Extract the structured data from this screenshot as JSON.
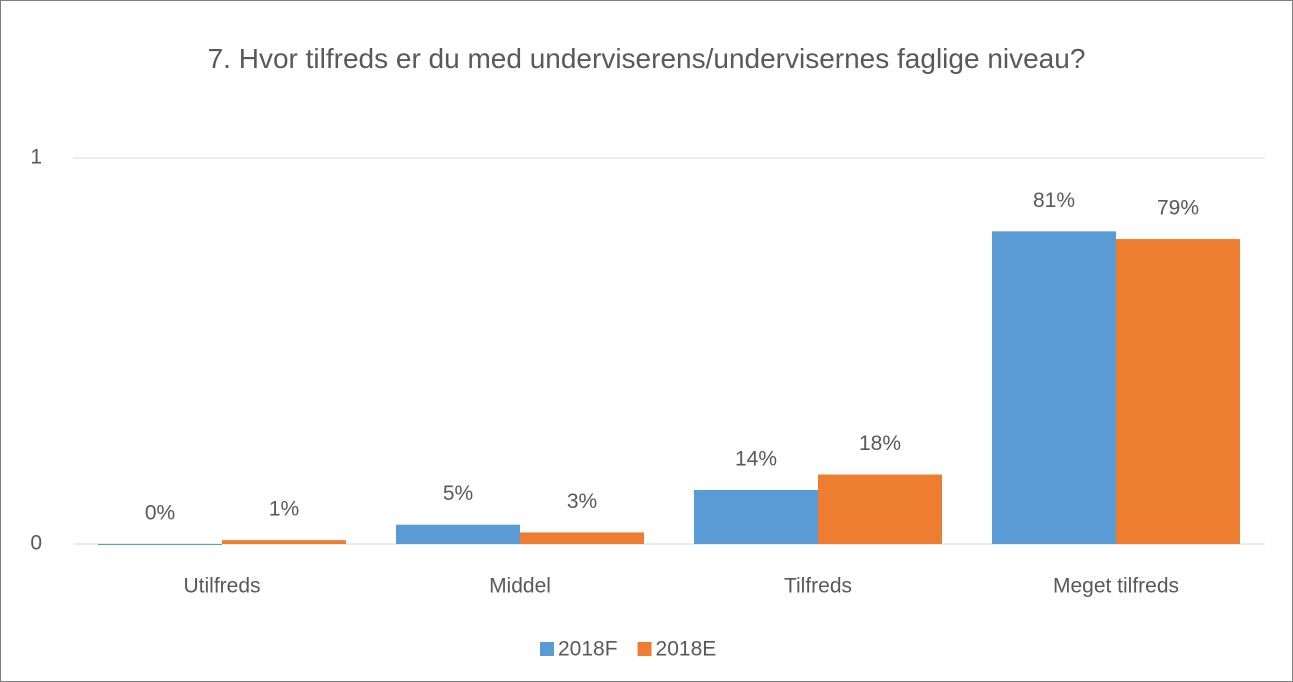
{
  "chart_data": {
    "type": "bar",
    "title": "7. Hvor tilfreds er du med underviserens/undervisernes faglige niveau?",
    "categories": [
      "Utilfreds",
      "Middel",
      "Tilfreds",
      "Meget tilfreds"
    ],
    "series": [
      {
        "name": "2018F",
        "color": "#5b9bd5",
        "values": [
          0,
          0.05,
          0.14,
          0.81
        ],
        "value_labels": [
          "0%",
          "5%",
          "14%",
          "81%"
        ]
      },
      {
        "name": "2018E",
        "color": "#ed7d31",
        "values": [
          0.01,
          0.03,
          0.18,
          0.79
        ],
        "value_labels": [
          "1%",
          "3%",
          "18%",
          "79%"
        ]
      }
    ],
    "ylim": [
      0,
      1
    ],
    "yticks": [
      0,
      1
    ],
    "grid": true,
    "legend": "bottom"
  }
}
